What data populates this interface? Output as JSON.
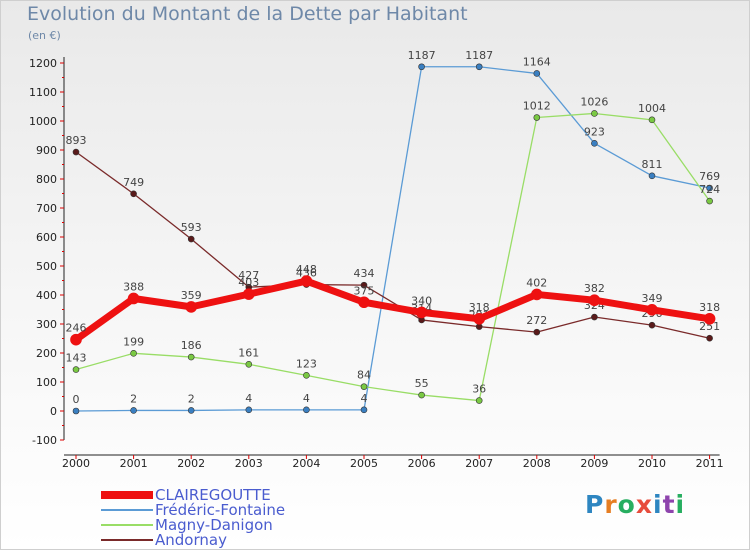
{
  "title": "Evolution du Montant de la Dette par Habitant",
  "unit": "(en €)",
  "logo": {
    "text": "Proxiti",
    "colors": [
      "#2e86c1",
      "#e67e22",
      "#27ae60",
      "#e74c3c",
      "#2e86c1",
      "#8e44ad",
      "#27ae60"
    ]
  },
  "chart_data": {
    "type": "line",
    "x": [
      "2000",
      "2001",
      "2002",
      "2003",
      "2004",
      "2005",
      "2006",
      "2007",
      "2008",
      "2009",
      "2010",
      "2011"
    ],
    "ylim": [
      -100,
      1200
    ],
    "yticks": [
      "-100",
      "0",
      "100",
      "200",
      "300",
      "400",
      "500",
      "600",
      "700",
      "800",
      "900",
      "1000",
      "1100",
      "1200"
    ],
    "grid": false,
    "legend_position": "bottom-left",
    "series": [
      {
        "name": "Frédéric-Fontaine",
        "color": "#5b9bd5",
        "dot": "#3a7fc1",
        "width": 1.3,
        "values": [
          0,
          2,
          2,
          4,
          4,
          4,
          1187,
          1187,
          1164,
          923,
          811,
          769
        ]
      },
      {
        "name": "Magny-Danigon",
        "color": "#99dd66",
        "dot": "#7ac943",
        "width": 1.3,
        "values": [
          143,
          199,
          186,
          161,
          123,
          84,
          55,
          36,
          1012,
          1026,
          1004,
          724
        ]
      },
      {
        "name": "Andornay",
        "color": "#7a2a2a",
        "dot": "#5a1a1a",
        "width": 1.3,
        "values": [
          893,
          749,
          593,
          427,
          436,
          434,
          314,
          291,
          272,
          324,
          296,
          251
        ]
      },
      {
        "name": "CLAIREGOUTTE",
        "color": "#ee1111",
        "dot": "#ee1111",
        "width": 7,
        "values": [
          246,
          388,
          359,
          403,
          448,
          375,
          340,
          318,
          402,
          382,
          349,
          318
        ]
      }
    ],
    "legend_order": [
      "CLAIREGOUTTE",
      "Frédéric-Fontaine",
      "Magny-Danigon",
      "Andornay"
    ]
  }
}
